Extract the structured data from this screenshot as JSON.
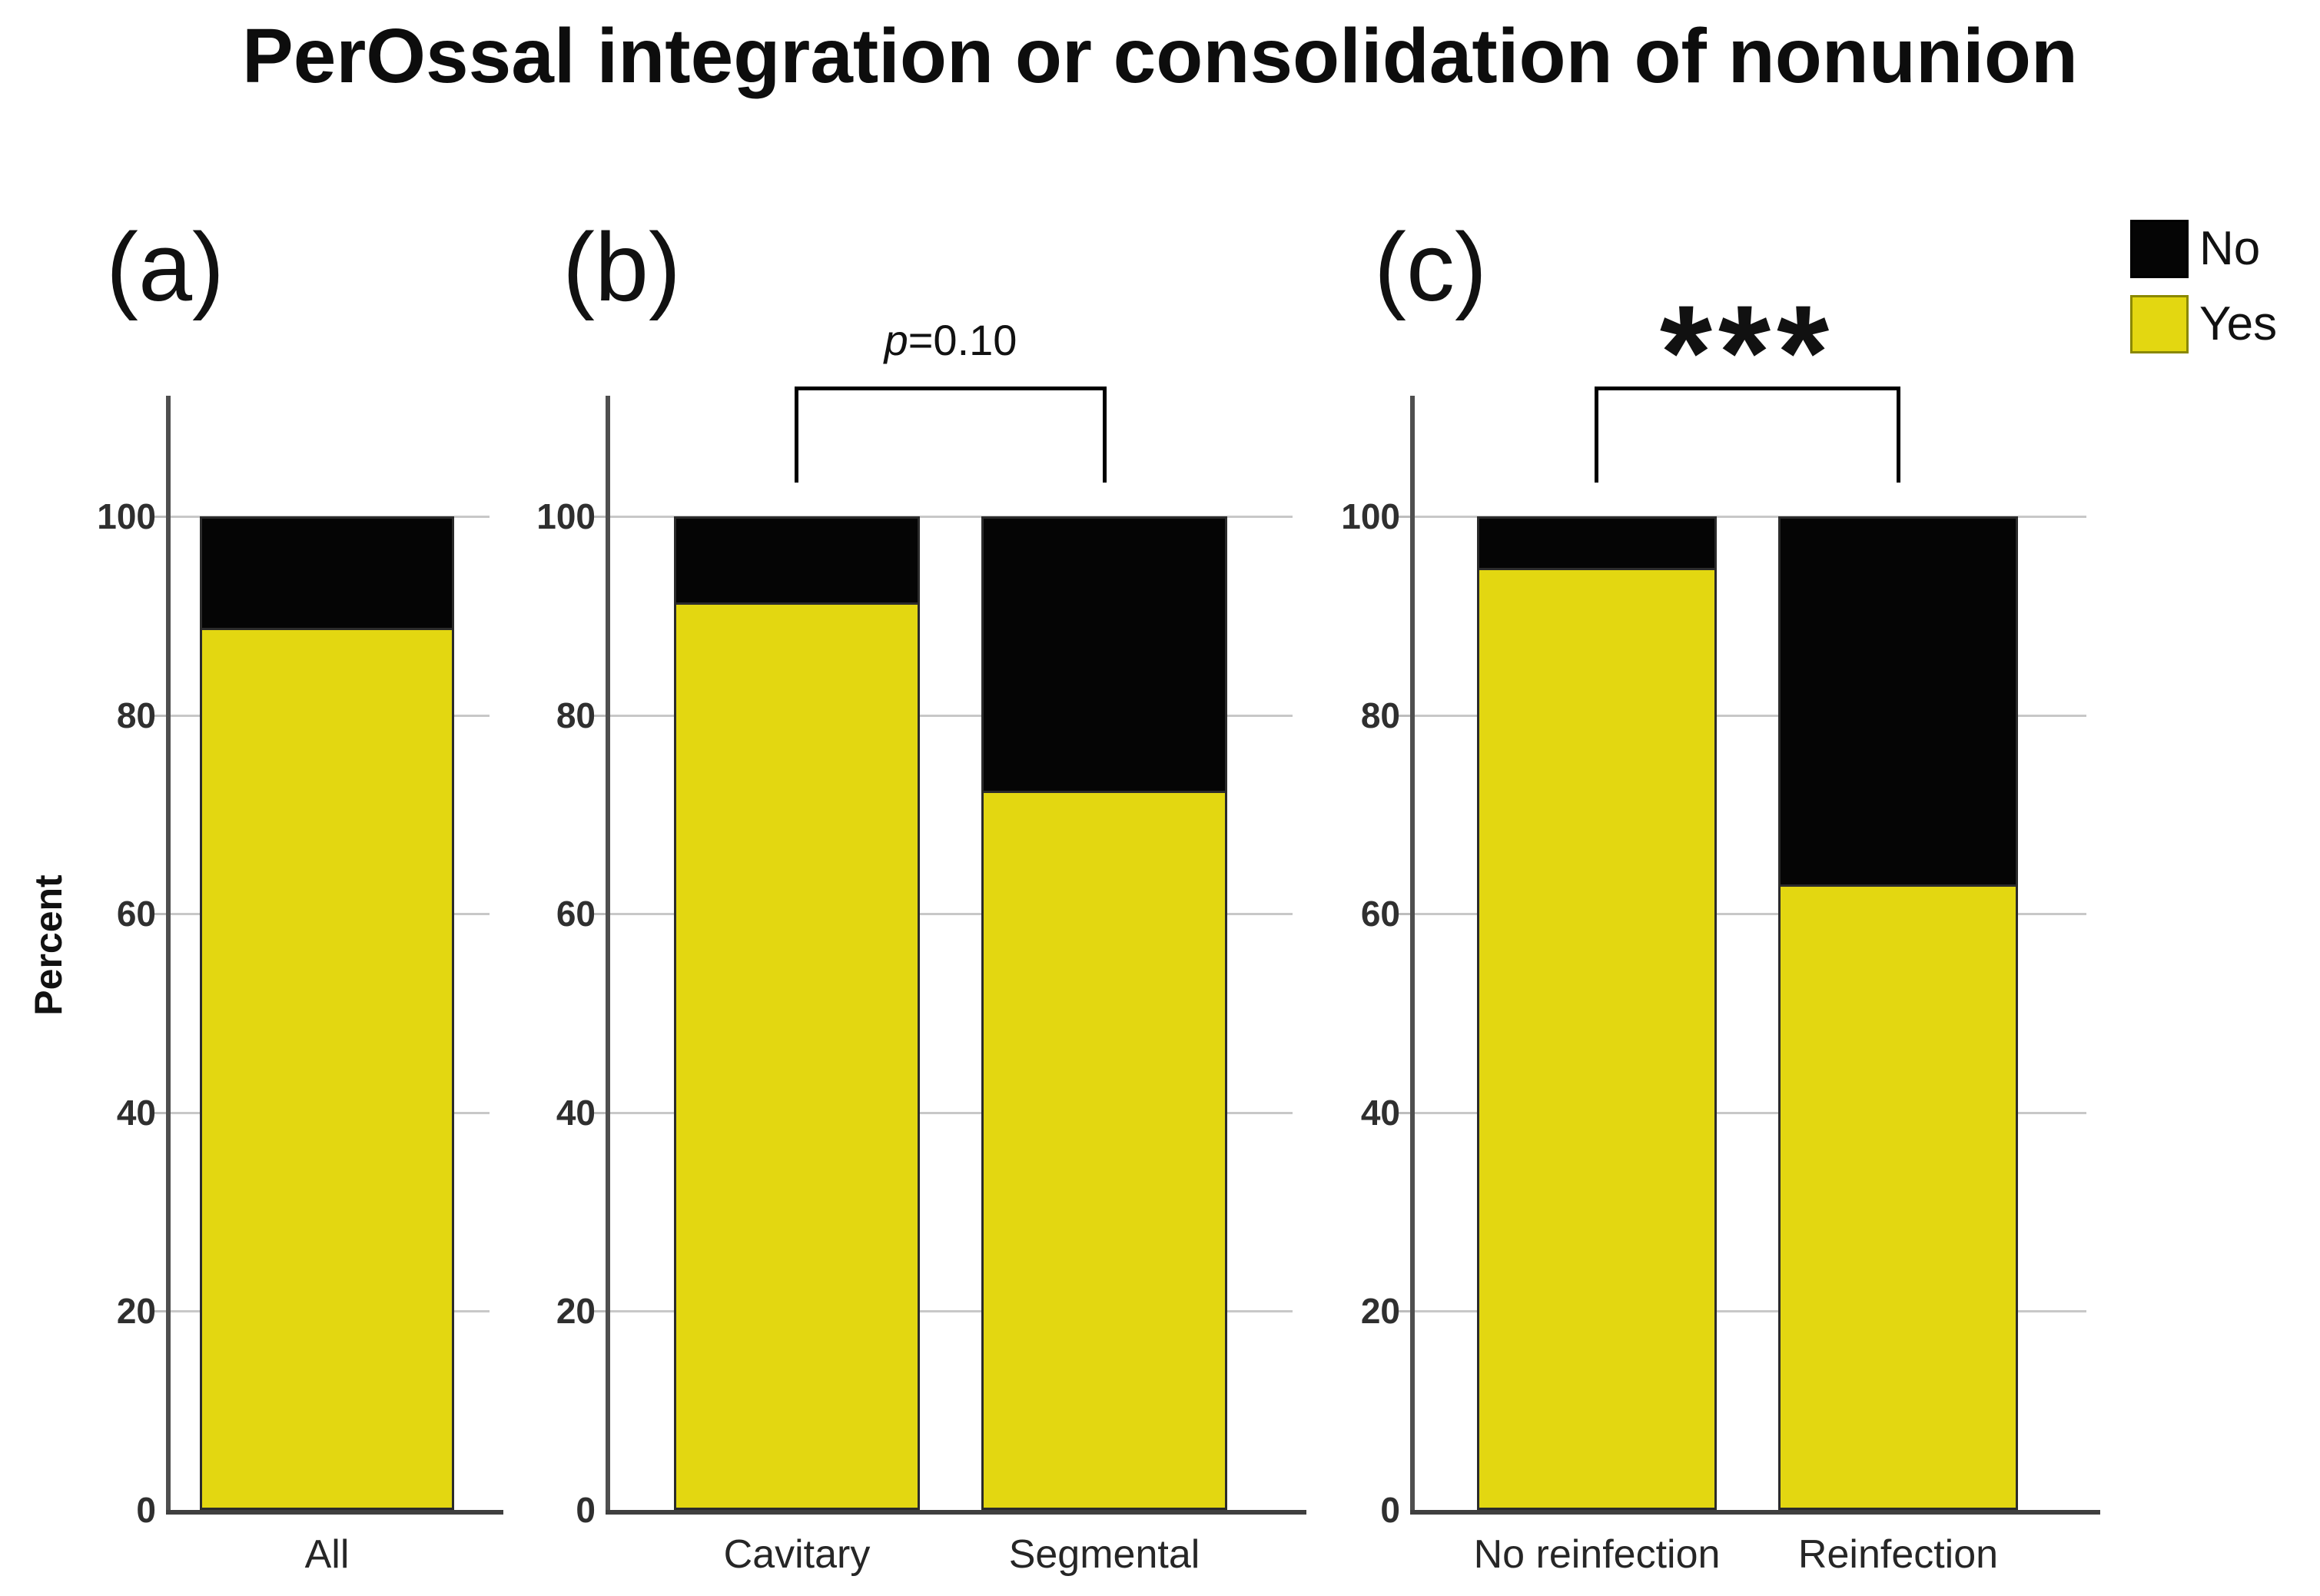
{
  "title": "PerOssal integration or consolidation of nonunion",
  "legend": {
    "items": [
      {
        "label": "No",
        "color": "#050505"
      },
      {
        "label": "Yes",
        "color": "#e3d711"
      }
    ]
  },
  "y_axis": {
    "label": "Percent",
    "ticks": [
      0,
      20,
      40,
      60,
      80,
      100
    ],
    "unit": "percent"
  },
  "chart_data": {
    "type": "bar",
    "stacked": true,
    "ylabel": "Percent",
    "ylim": [
      0,
      112
    ],
    "gridlines": [
      20,
      40,
      60,
      80,
      100
    ],
    "legend_position": "top-right",
    "series_order": [
      "Yes",
      "No"
    ],
    "panels": [
      {
        "tag": "(a)",
        "categories": [
          "All"
        ],
        "series": [
          {
            "name": "Yes",
            "values": [
              89
            ]
          },
          {
            "name": "No",
            "values": [
              11
            ]
          }
        ],
        "significance": null
      },
      {
        "tag": "(b)",
        "categories": [
          "Cavitary",
          "Segmental"
        ],
        "series": [
          {
            "name": "Yes",
            "values": [
              91.5,
              72.5
            ]
          },
          {
            "name": "No",
            "values": [
              8.5,
              27.5
            ]
          }
        ],
        "significance": {
          "label": "p=0.10",
          "style": "pvalue"
        }
      },
      {
        "tag": "(c)",
        "categories": [
          "No reinfection",
          "Reinfection"
        ],
        "series": [
          {
            "name": "Yes",
            "values": [
              95,
              63
            ]
          },
          {
            "name": "No",
            "values": [
              5,
              37
            ]
          }
        ],
        "significance": {
          "label": "***",
          "style": "stars"
        }
      }
    ]
  }
}
